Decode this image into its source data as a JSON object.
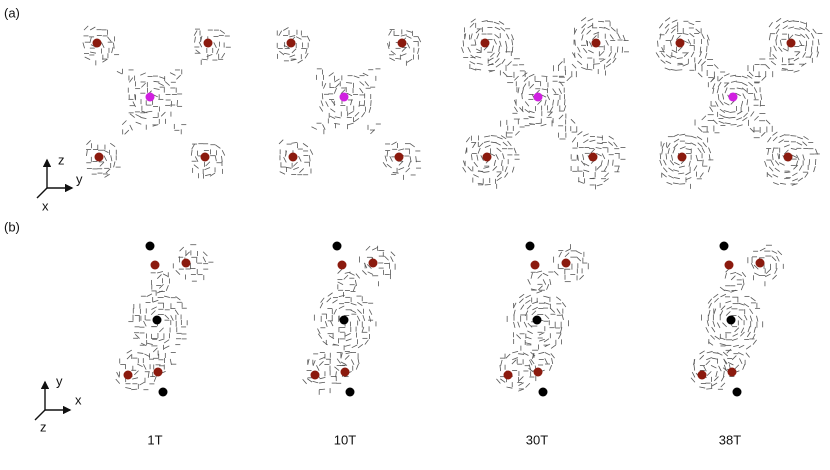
{
  "panels": {
    "a": {
      "label": "(a)",
      "axes": {
        "vertical": "z",
        "horizontal": "y",
        "depth": "x"
      }
    },
    "b": {
      "label": "(b)",
      "axes": {
        "vertical": "y",
        "horizontal": "x",
        "depth": "z"
      }
    }
  },
  "field_labels": [
    "1T",
    "10T",
    "30T",
    "38T"
  ]
}
